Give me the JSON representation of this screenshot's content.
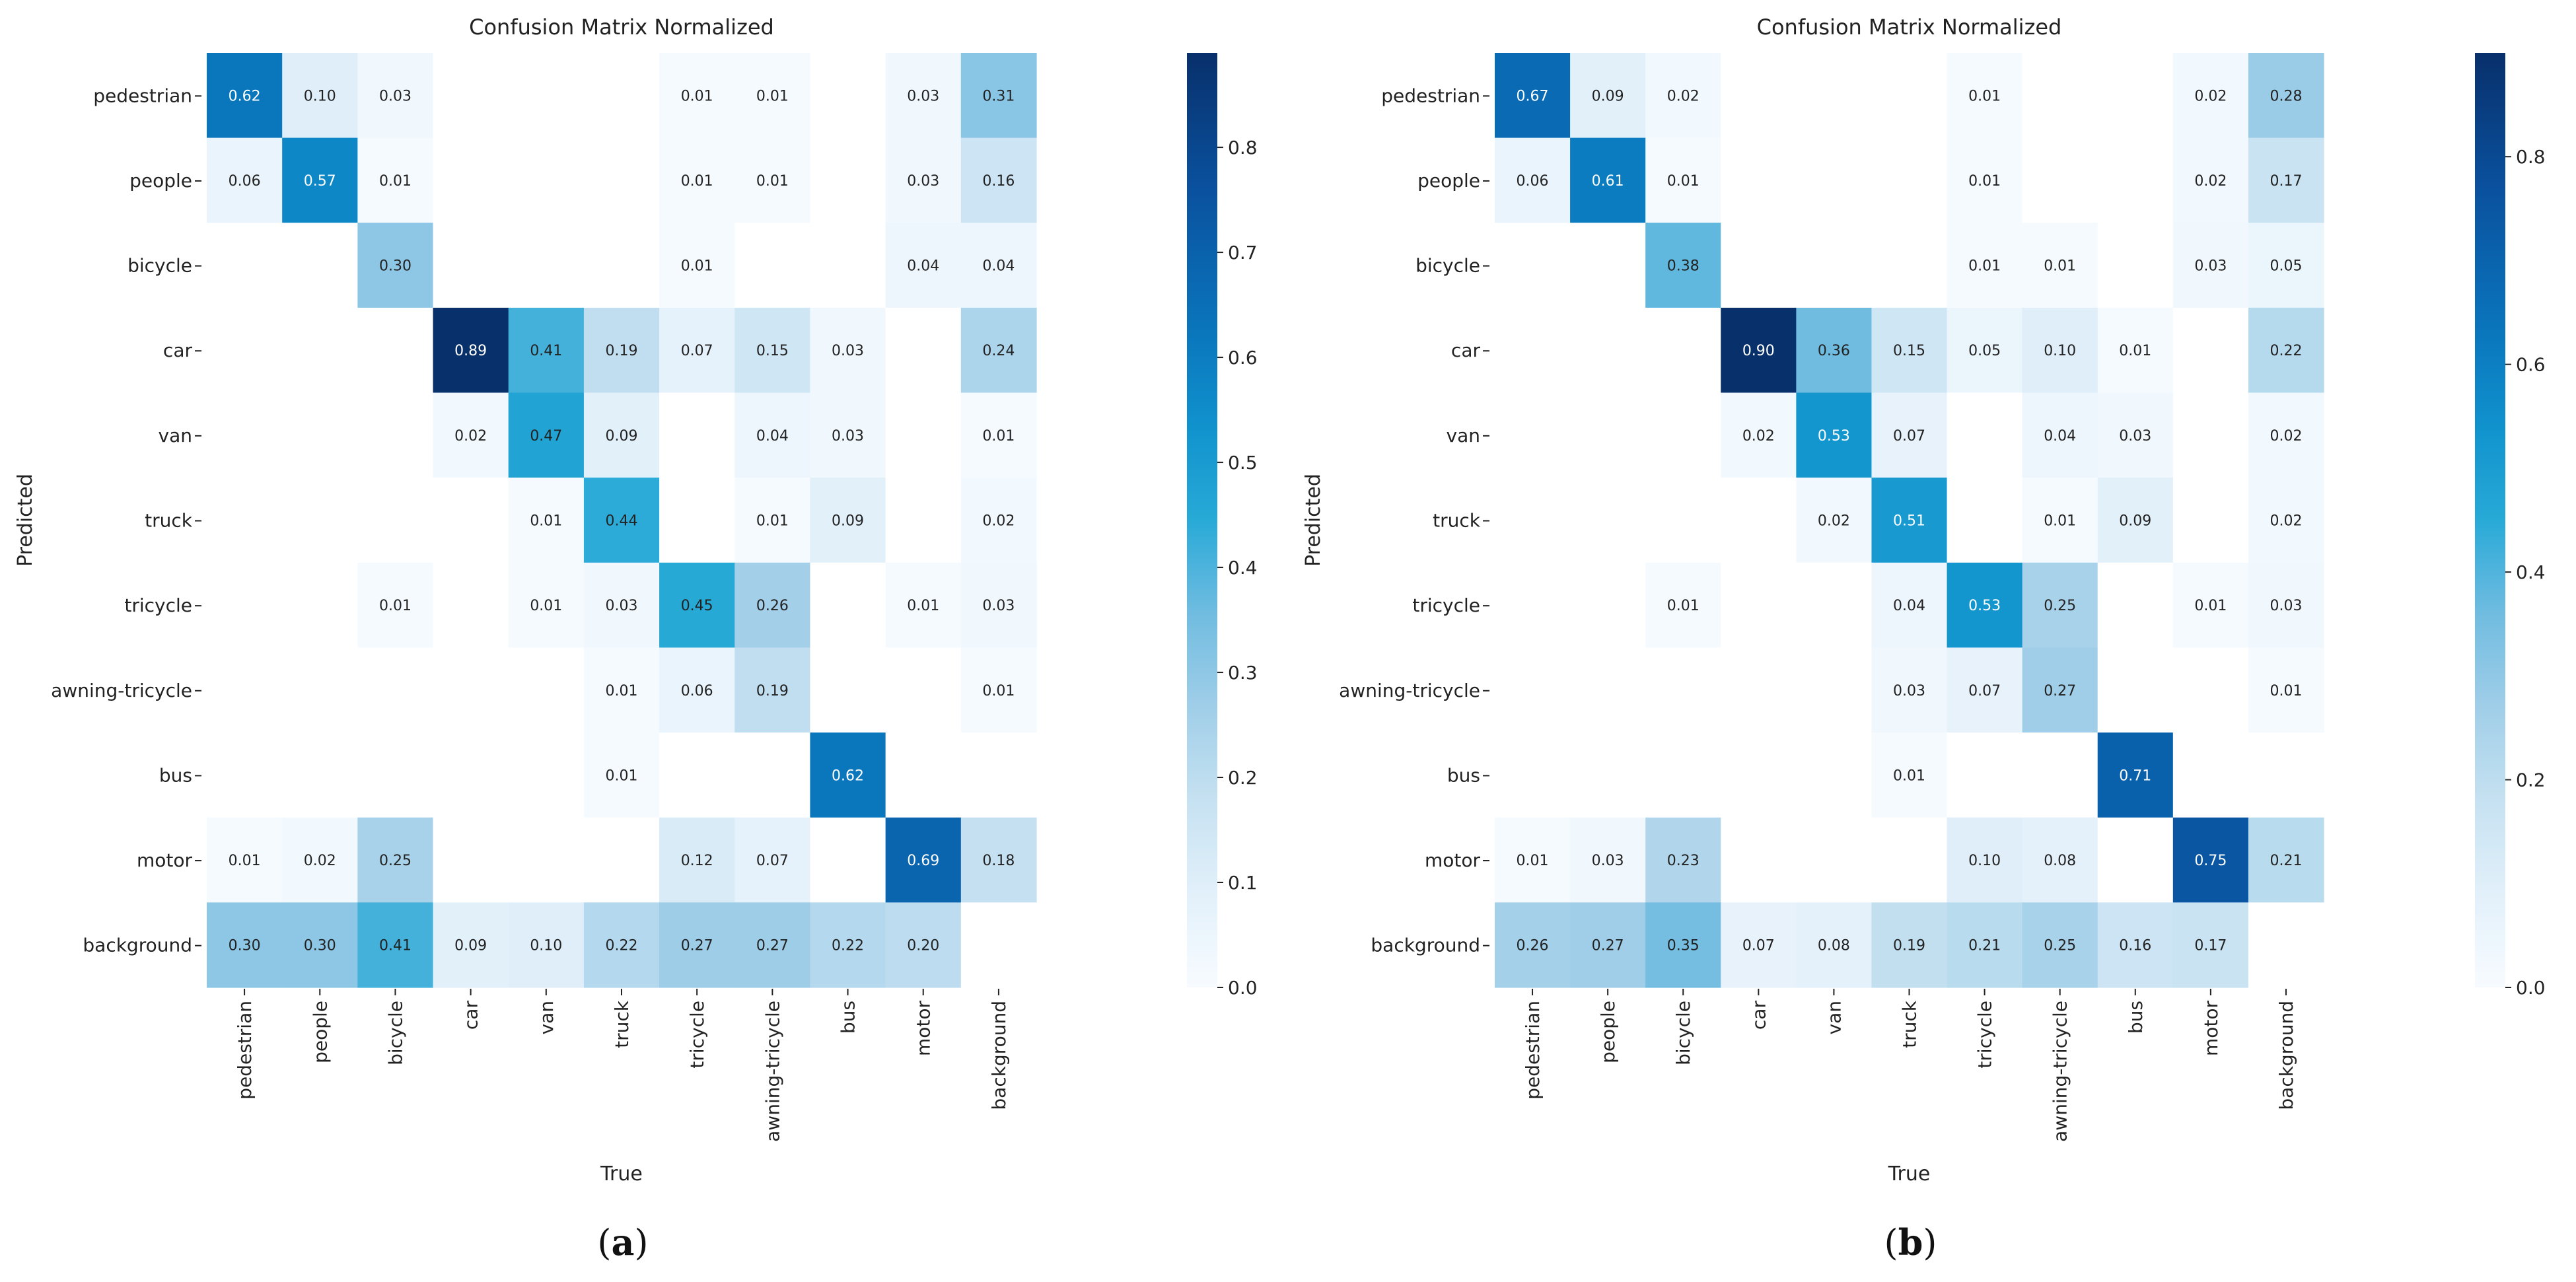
{
  "chart_data": [
    {
      "type": "heatmap",
      "panel_label": "a",
      "title": "Confusion Matrix Normalized",
      "xlabel": "True",
      "ylabel": "Predicted",
      "categories": [
        "pedestrian",
        "people",
        "bicycle",
        "car",
        "van",
        "truck",
        "tricycle",
        "awning-tricycle",
        "bus",
        "motor",
        "background"
      ],
      "colorbar": {
        "range": [
          0.0,
          0.89
        ],
        "ticks": [
          "0.0",
          "0.1",
          "0.2",
          "0.3",
          "0.4",
          "0.5",
          "0.6",
          "0.7",
          "0.8"
        ]
      },
      "values": [
        [
          0.62,
          0.1,
          0.03,
          null,
          null,
          null,
          0.01,
          0.01,
          null,
          0.03,
          0.31
        ],
        [
          0.06,
          0.57,
          0.01,
          null,
          null,
          null,
          0.01,
          0.01,
          null,
          0.03,
          0.16
        ],
        [
          null,
          null,
          0.3,
          null,
          null,
          null,
          0.01,
          null,
          null,
          0.04,
          0.04
        ],
        [
          null,
          null,
          null,
          0.89,
          0.41,
          0.19,
          0.07,
          0.15,
          0.03,
          null,
          0.24
        ],
        [
          null,
          null,
          null,
          0.02,
          0.47,
          0.09,
          null,
          0.04,
          0.03,
          null,
          0.01
        ],
        [
          null,
          null,
          null,
          null,
          0.01,
          0.44,
          null,
          0.01,
          0.09,
          null,
          0.02
        ],
        [
          null,
          null,
          0.01,
          null,
          0.01,
          0.03,
          0.45,
          0.26,
          null,
          0.01,
          0.03
        ],
        [
          null,
          null,
          null,
          null,
          null,
          0.01,
          0.06,
          0.19,
          null,
          null,
          0.01
        ],
        [
          null,
          null,
          null,
          null,
          null,
          0.01,
          null,
          null,
          0.62,
          null,
          null
        ],
        [
          0.01,
          0.02,
          0.25,
          null,
          null,
          null,
          0.12,
          0.07,
          null,
          0.69,
          0.18
        ],
        [
          0.3,
          0.3,
          0.41,
          0.09,
          0.1,
          0.22,
          0.27,
          0.27,
          0.22,
          0.2,
          null
        ]
      ]
    },
    {
      "type": "heatmap",
      "panel_label": "b",
      "title": "Confusion Matrix Normalized",
      "xlabel": "True",
      "ylabel": "Predicted",
      "categories": [
        "pedestrian",
        "people",
        "bicycle",
        "car",
        "van",
        "truck",
        "tricycle",
        "awning-tricycle",
        "bus",
        "motor",
        "background"
      ],
      "colorbar": {
        "range": [
          0.0,
          0.9
        ],
        "ticks": [
          "0.0",
          "0.2",
          "0.4",
          "0.6",
          "0.8"
        ]
      },
      "values": [
        [
          0.67,
          0.09,
          0.02,
          null,
          null,
          null,
          0.01,
          null,
          null,
          0.02,
          0.28
        ],
        [
          0.06,
          0.61,
          0.01,
          null,
          null,
          null,
          0.01,
          null,
          null,
          0.02,
          0.17
        ],
        [
          null,
          null,
          0.38,
          null,
          null,
          null,
          0.01,
          0.01,
          null,
          0.03,
          0.05
        ],
        [
          null,
          null,
          null,
          0.9,
          0.36,
          0.15,
          0.05,
          0.1,
          0.01,
          null,
          0.22
        ],
        [
          null,
          null,
          null,
          0.02,
          0.53,
          0.07,
          null,
          0.04,
          0.03,
          null,
          0.02
        ],
        [
          null,
          null,
          null,
          null,
          0.02,
          0.51,
          null,
          0.01,
          0.09,
          null,
          0.02
        ],
        [
          null,
          null,
          0.01,
          null,
          null,
          0.04,
          0.53,
          0.25,
          null,
          0.01,
          0.03
        ],
        [
          null,
          null,
          null,
          null,
          null,
          0.03,
          0.07,
          0.27,
          null,
          null,
          0.01
        ],
        [
          null,
          null,
          null,
          null,
          null,
          0.01,
          null,
          null,
          0.71,
          null,
          null
        ],
        [
          0.01,
          0.03,
          0.23,
          null,
          null,
          null,
          0.1,
          0.08,
          null,
          0.75,
          0.21
        ],
        [
          0.26,
          0.27,
          0.35,
          0.07,
          0.08,
          0.19,
          0.21,
          0.25,
          0.16,
          0.17,
          null
        ]
      ]
    }
  ]
}
